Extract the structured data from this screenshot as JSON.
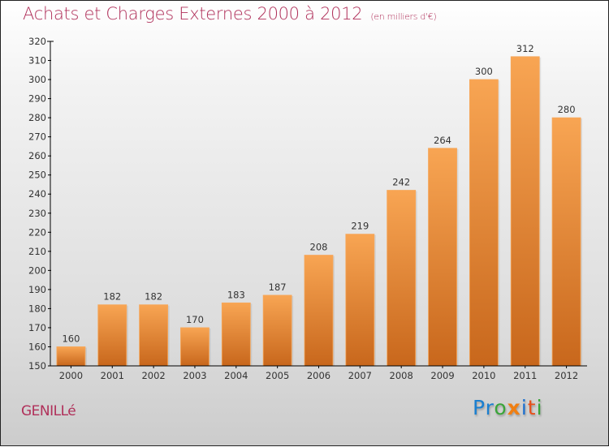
{
  "header": {
    "title": "Achats et Charges Externes 2000 à 2012",
    "subtitle": "(en milliers d'€)"
  },
  "footer": {
    "commune": "GENILLé",
    "logo": {
      "letters": [
        "P",
        "r",
        "o",
        "x",
        "i",
        "t",
        "i"
      ],
      "colors": [
        "#1a7fd0",
        "#1a7fd0",
        "#3aa53a",
        "#f07f12",
        "#1a6fd0",
        "#e8501a",
        "#3aa53a"
      ]
    }
  },
  "colors": {
    "bar_top": "#f8a553",
    "bar_bottom": "#c8671c",
    "title": "#b0305a",
    "axis": "#000000",
    "label": "#333333"
  },
  "chart_data": {
    "type": "bar",
    "title": "Achats et Charges Externes 2000 à 2012",
    "subtitle": "(en milliers d'€)",
    "xlabel": "",
    "ylabel": "",
    "categories": [
      "2000",
      "2001",
      "2002",
      "2003",
      "2004",
      "2005",
      "2006",
      "2007",
      "2008",
      "2009",
      "2010",
      "2011",
      "2012"
    ],
    "values": [
      160,
      182,
      182,
      170,
      183,
      187,
      208,
      219,
      242,
      264,
      300,
      312,
      280
    ],
    "ylim": [
      150,
      320
    ],
    "yticks": [
      150,
      160,
      170,
      180,
      190,
      200,
      210,
      220,
      230,
      240,
      250,
      260,
      270,
      280,
      290,
      300,
      310,
      320
    ],
    "grid": false,
    "legend": "none",
    "data_labels": true
  }
}
